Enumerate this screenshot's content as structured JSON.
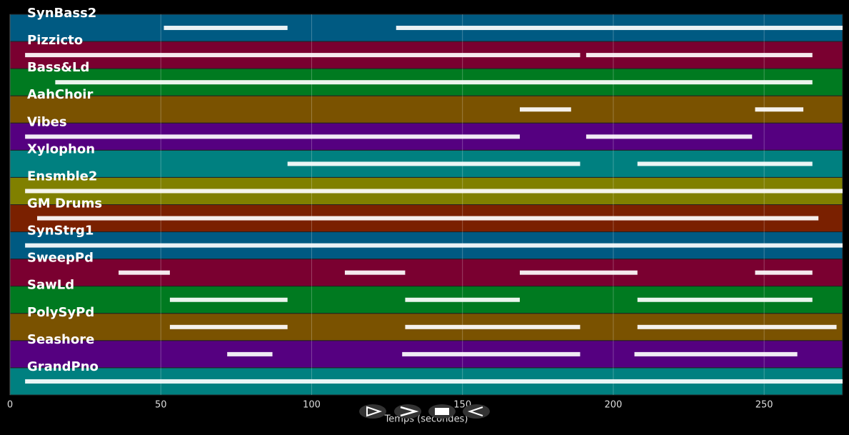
{
  "chart_data": {
    "type": "timeline",
    "xlabel": "Temps (secondes)",
    "xlim": [
      0,
      276
    ],
    "xticks": [
      0,
      50,
      100,
      150,
      200,
      250
    ],
    "grid": true,
    "series": [
      {
        "name": "SynBass2",
        "color": "#005a82",
        "ranges": [
          [
            51,
            92
          ],
          [
            128,
            276
          ]
        ]
      },
      {
        "name": "Pizzicto",
        "color": "#7a0030",
        "ranges": [
          [
            5,
            189
          ],
          [
            191,
            266
          ]
        ]
      },
      {
        "name": "Bass&Ld",
        "color": "#007a20",
        "ranges": [
          [
            15,
            266
          ]
        ]
      },
      {
        "name": "AahChoir",
        "color": "#7a5200",
        "ranges": [
          [
            169,
            186
          ],
          [
            247,
            263
          ]
        ]
      },
      {
        "name": "Vibes",
        "color": "#550080",
        "ranges": [
          [
            5,
            169
          ],
          [
            191,
            246
          ]
        ]
      },
      {
        "name": "Xylophon",
        "color": "#008080",
        "ranges": [
          [
            92,
            189
          ],
          [
            208,
            266
          ]
        ]
      },
      {
        "name": "Ensmble2",
        "color": "#808000",
        "ranges": [
          [
            5,
            276
          ]
        ]
      },
      {
        "name": "GM Drums",
        "color": "#7a2000",
        "ranges": [
          [
            9,
            268
          ]
        ]
      },
      {
        "name": "SynStrg1",
        "color": "#005a82",
        "ranges": [
          [
            5,
            276
          ]
        ]
      },
      {
        "name": "SweepPd",
        "color": "#7a0030",
        "ranges": [
          [
            36,
            53
          ],
          [
            111,
            131
          ],
          [
            169,
            208
          ],
          [
            247,
            266
          ]
        ]
      },
      {
        "name": "SawLd",
        "color": "#007a20",
        "ranges": [
          [
            53,
            92
          ],
          [
            131,
            169
          ],
          [
            208,
            266
          ]
        ]
      },
      {
        "name": "PolySyPd",
        "color": "#7a5200",
        "ranges": [
          [
            53,
            92
          ],
          [
            131,
            189
          ],
          [
            208,
            274
          ]
        ]
      },
      {
        "name": "Seashore",
        "color": "#550080",
        "ranges": [
          [
            72,
            87
          ],
          [
            130,
            189
          ],
          [
            207,
            261
          ]
        ]
      },
      {
        "name": "GrandPno",
        "color": "#008080",
        "ranges": [
          [
            5,
            276
          ]
        ]
      }
    ]
  }
}
